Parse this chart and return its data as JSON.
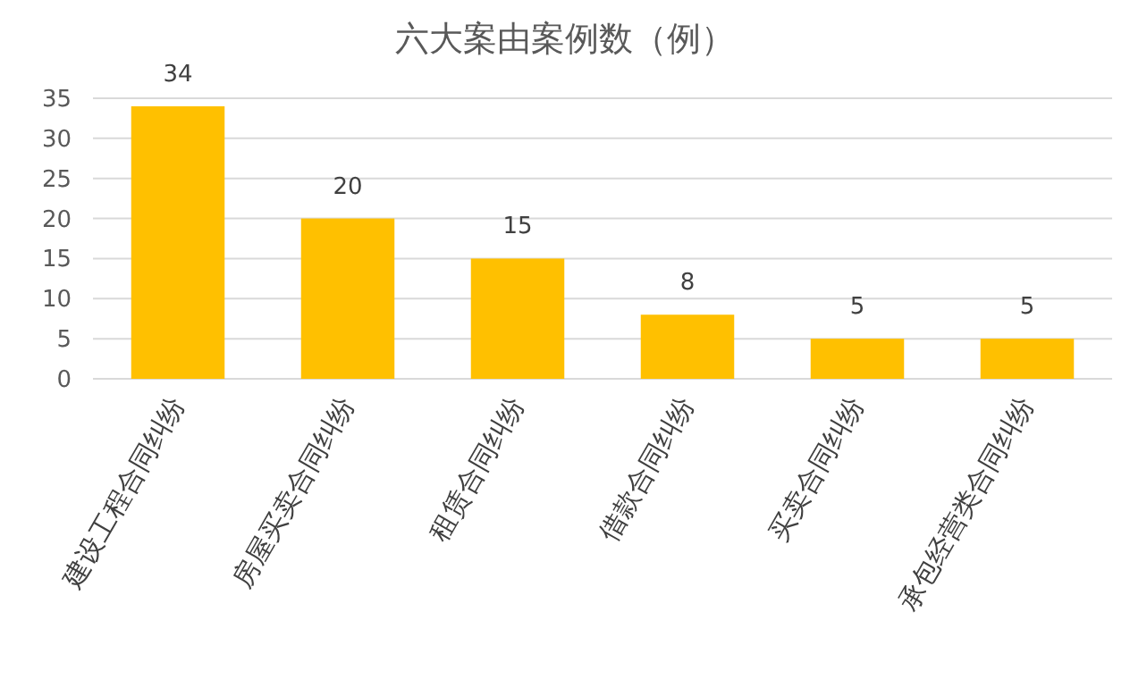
{
  "chart_data": {
    "type": "bar",
    "title": "六大案由案例数（例）",
    "categories": [
      "建设工程合同纠纷",
      "房屋买卖合同纠纷",
      "租赁合同纠纷",
      "借款合同纠纷",
      "买卖合同纠纷",
      "承包经营类合同纠纷"
    ],
    "values": [
      34,
      20,
      15,
      8,
      5,
      5
    ],
    "color": "#ffc000",
    "ylim": [
      0,
      35
    ],
    "yticks": [
      0,
      5,
      10,
      15,
      20,
      25,
      30,
      35
    ],
    "grid": "y",
    "data_labels": true
  }
}
